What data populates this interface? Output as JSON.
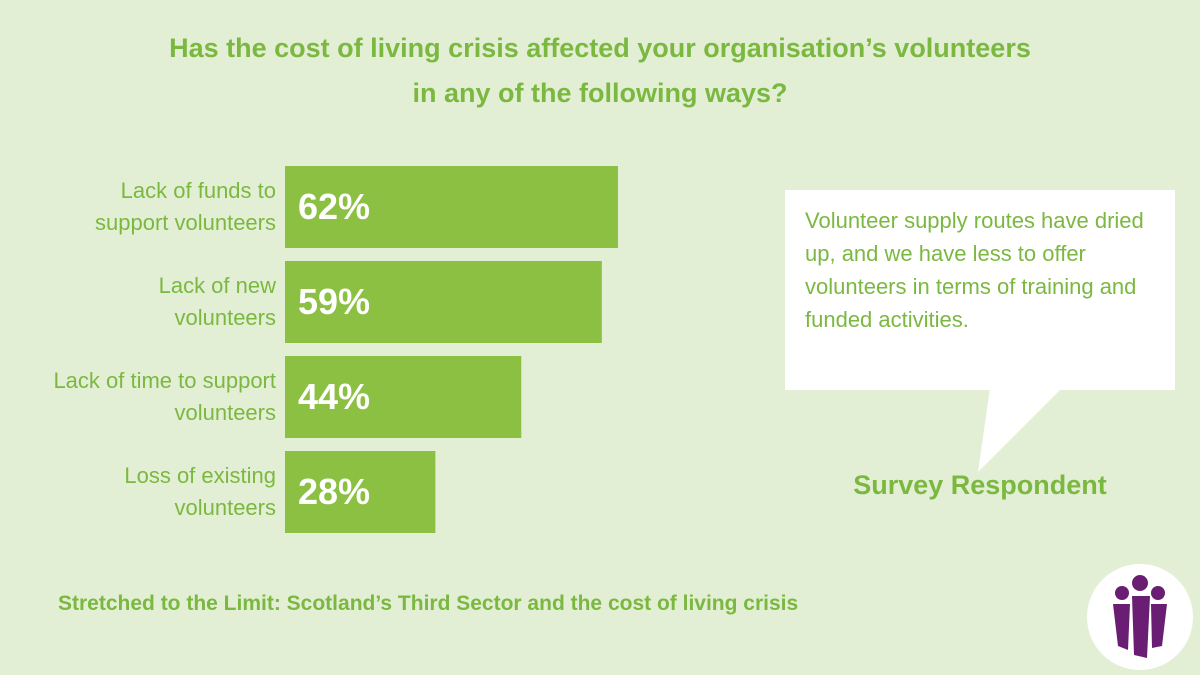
{
  "chart_data": {
    "type": "bar",
    "title": [
      "Has the cost of living crisis affected your organisation’s volunteers",
      "in any of the following ways?"
    ],
    "categories": [
      "Lack of funds to support volunteers",
      "Lack of new volunteers",
      "Lack of time to support volunteers",
      "Loss of existing volunteers"
    ],
    "values": [
      62,
      59,
      44,
      28
    ],
    "value_labels": [
      "62%",
      "59%",
      "44%",
      "28%"
    ],
    "color": "#8bc043"
  },
  "quote": {
    "text": "Volunteer supply routes have dried up, and we have less to offer volunteers in terms of training and funded activities.",
    "attribution": "Survey Respondent"
  },
  "footer": "Stretched to the Limit: Scotland’s Third Sector and the cost of living crisis"
}
